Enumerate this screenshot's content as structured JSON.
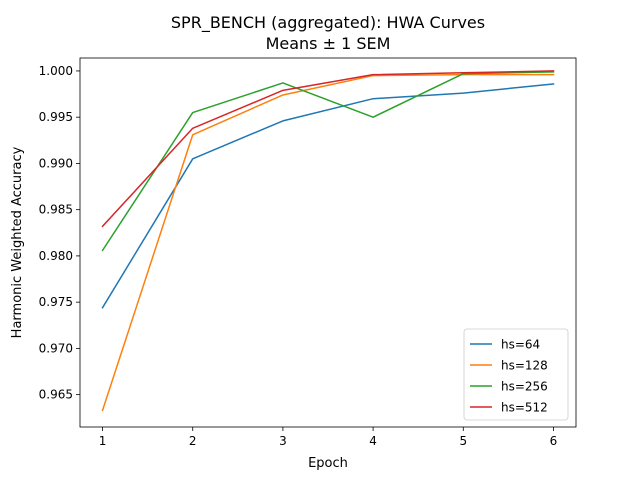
{
  "chart_data": {
    "type": "line",
    "title": "SPR_BENCH (aggregated): HWA Curves",
    "subtitle": "Means ± 1 SEM",
    "xlabel": "Epoch",
    "ylabel": "Harmonic Weighted Accuracy",
    "x": [
      1,
      2,
      3,
      4,
      5,
      6
    ],
    "xlim": [
      0.75,
      6.25
    ],
    "ylim": [
      0.9615,
      1.0014
    ],
    "xticks": [
      1,
      2,
      3,
      4,
      5,
      6
    ],
    "yticks": [
      0.965,
      0.97,
      0.975,
      0.98,
      0.985,
      0.99,
      0.995,
      1.0
    ],
    "ytick_labels": [
      "0.965",
      "0.970",
      "0.975",
      "0.980",
      "0.985",
      "0.990",
      "0.995",
      "1.000"
    ],
    "grid": false,
    "legend_position": "lower-right",
    "series": [
      {
        "name": "hs=64",
        "color": "#1f77b4",
        "values": [
          0.9744,
          0.9905,
          0.9946,
          0.997,
          0.9976,
          0.9986
        ]
      },
      {
        "name": "hs=128",
        "color": "#ff7f0e",
        "values": [
          0.9633,
          0.9931,
          0.9974,
          0.9995,
          0.9996,
          0.9996
        ]
      },
      {
        "name": "hs=256",
        "color": "#2ca02c",
        "values": [
          0.9806,
          0.9955,
          0.9987,
          0.995,
          0.9997,
          0.9999
        ]
      },
      {
        "name": "hs=512",
        "color": "#d62728",
        "values": [
          0.9832,
          0.9938,
          0.9979,
          0.9996,
          0.9998,
          1.0
        ]
      }
    ]
  }
}
